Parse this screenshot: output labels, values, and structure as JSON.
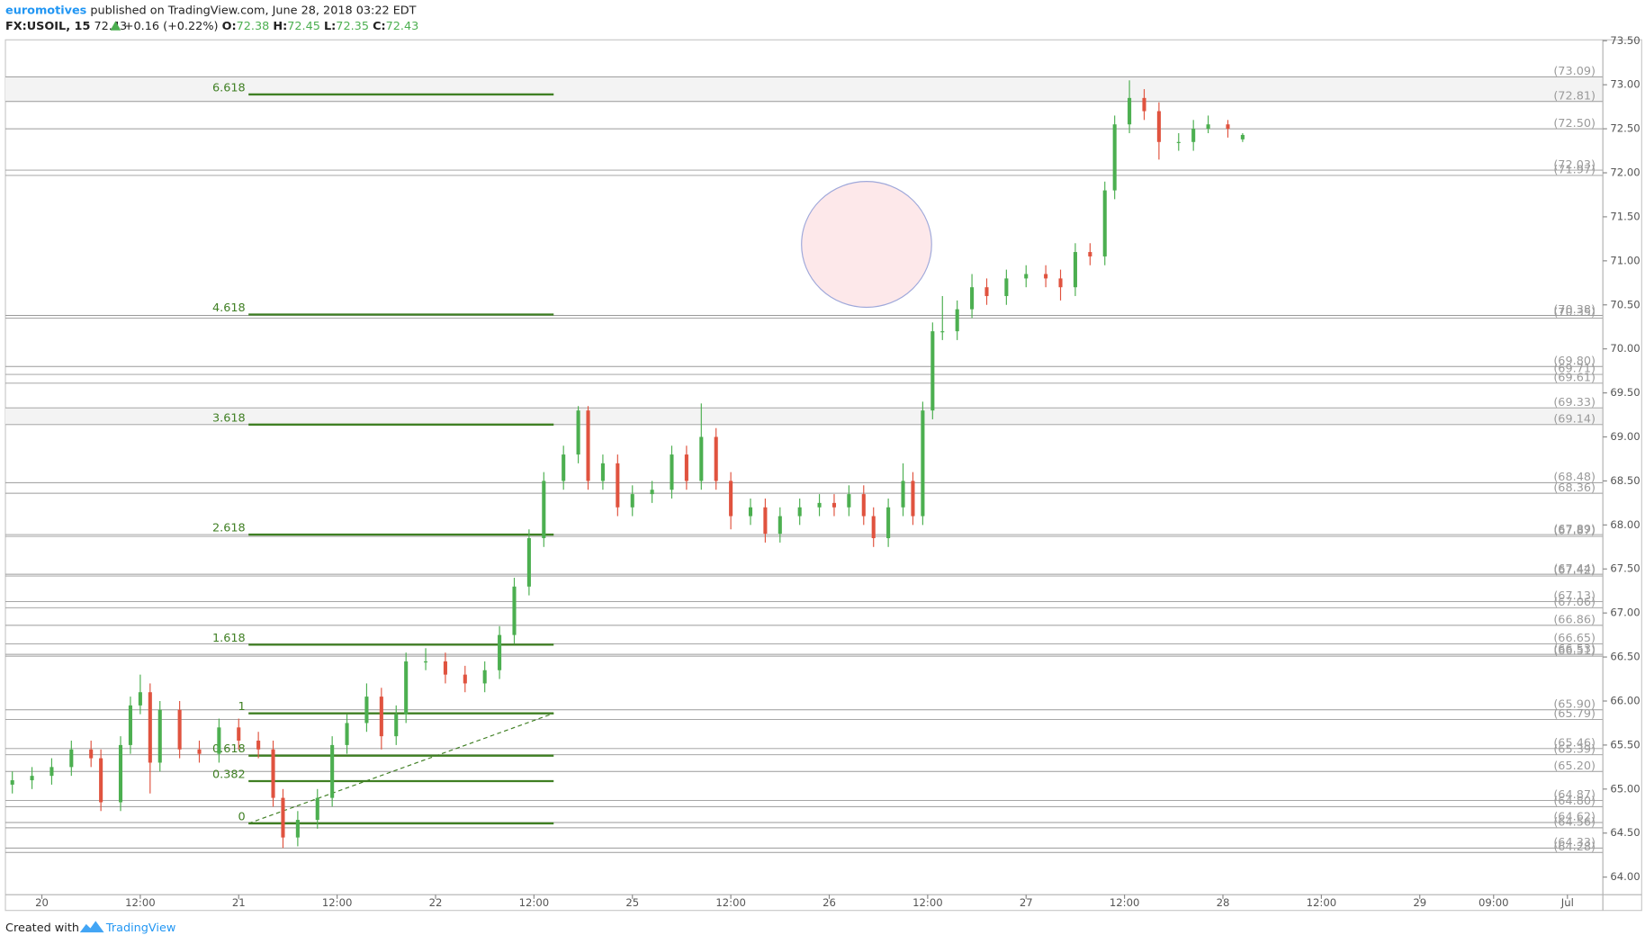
{
  "header": {
    "author": "euromotives",
    "published": "published on TradingView.com, June 28, 2018 03:22 EDT",
    "symbol": "FX:USOIL, 15",
    "last": 72.43,
    "change": "+0.16 (+0.22%)",
    "open_label": "O:",
    "open": 72.38,
    "high_label": "H:",
    "high": 72.45,
    "low_label": "L:",
    "low": 72.35,
    "close_label": "C:",
    "close": 72.43
  },
  "footer": {
    "created": "Created with",
    "brand": "TradingView"
  },
  "chart_data": {
    "type": "candlestick",
    "up_color": "#4caf50",
    "down_color": "#e0533f",
    "xlim": [
      -0.37,
      15.86
    ],
    "xticks": [
      {
        "value": 0,
        "label": "20"
      },
      {
        "value": 1,
        "label": "12:00"
      },
      {
        "value": 2,
        "label": "21"
      },
      {
        "value": 3,
        "label": "12:00"
      },
      {
        "value": 4,
        "label": "22"
      },
      {
        "value": 5,
        "label": "12:00"
      },
      {
        "value": 6,
        "label": "25"
      },
      {
        "value": 7,
        "label": "12:00"
      },
      {
        "value": 8,
        "label": "26"
      },
      {
        "value": 9,
        "label": "12:00"
      },
      {
        "value": 10,
        "label": "27"
      },
      {
        "value": 11,
        "label": "12:00"
      },
      {
        "value": 12,
        "label": "28"
      },
      {
        "value": 13,
        "label": "12:00"
      },
      {
        "value": 14,
        "label": "29"
      },
      {
        "value": 14.75,
        "label": "09:00"
      },
      {
        "value": 15.5,
        "label": "Jul"
      }
    ],
    "ylim": [
      63.8,
      73.51
    ],
    "yticks": [
      {
        "value": 64,
        "label": "64.00"
      },
      {
        "value": 64.5,
        "label": "64.50"
      },
      {
        "value": 65,
        "label": "65.00"
      },
      {
        "value": 65.5,
        "label": "65.50"
      },
      {
        "value": 66,
        "label": "66.00"
      },
      {
        "value": 66.5,
        "label": "66.50"
      },
      {
        "value": 67,
        "label": "67.00"
      },
      {
        "value": 67.5,
        "label": "67.50"
      },
      {
        "value": 68,
        "label": "68.00"
      },
      {
        "value": 68.5,
        "label": "68.50"
      },
      {
        "value": 69,
        "label": "69.00"
      },
      {
        "value": 69.5,
        "label": "69.50"
      },
      {
        "value": 70,
        "label": "70.00"
      },
      {
        "value": 70.5,
        "label": "70.50"
      },
      {
        "value": 71,
        "label": "71.00"
      },
      {
        "value": 71.5,
        "label": "71.50"
      },
      {
        "value": 72,
        "label": "72.00"
      },
      {
        "value": 72.5,
        "label": "72.50"
      },
      {
        "value": 73,
        "label": "73.00"
      },
      {
        "value": 73.5,
        "label": "73.50"
      }
    ],
    "candles": {
      "x": [
        -0.3,
        -0.1,
        0.1,
        0.3,
        0.5,
        0.6,
        0.8,
        0.9,
        1.0,
        1.1,
        1.2,
        1.4,
        1.6,
        1.8,
        2.0,
        2.2,
        2.35,
        2.45,
        2.6,
        2.8,
        2.95,
        3.1,
        3.3,
        3.45,
        3.6,
        3.7,
        3.9,
        4.1,
        4.3,
        4.5,
        4.65,
        4.8,
        4.95,
        5.1,
        5.3,
        5.45,
        5.55,
        5.7,
        5.85,
        6.0,
        6.2,
        6.4,
        6.55,
        6.7,
        6.85,
        7.0,
        7.2,
        7.35,
        7.5,
        7.7,
        7.9,
        8.05,
        8.2,
        8.35,
        8.45,
        8.6,
        8.75,
        8.85,
        8.95,
        9.05,
        9.15,
        9.3,
        9.45,
        9.6,
        9.8,
        10.0,
        10.2,
        10.35,
        10.5,
        10.65,
        10.8,
        10.9,
        11.05,
        11.2,
        11.35,
        11.55,
        11.7,
        11.85,
        12.05,
        12.2
      ],
      "open": [
        65.05,
        65.1,
        65.15,
        65.25,
        65.45,
        65.35,
        64.85,
        65.5,
        65.95,
        66.1,
        65.3,
        65.9,
        65.45,
        65.4,
        65.7,
        65.55,
        65.45,
        64.9,
        64.45,
        64.65,
        64.9,
        65.5,
        65.75,
        66.05,
        65.6,
        65.85,
        66.45,
        66.45,
        66.3,
        66.2,
        66.35,
        66.75,
        67.3,
        67.85,
        68.5,
        68.8,
        69.3,
        68.5,
        68.7,
        68.2,
        68.35,
        68.4,
        68.8,
        68.5,
        69.0,
        68.5,
        68.1,
        68.2,
        67.9,
        68.1,
        68.2,
        68.25,
        68.2,
        68.35,
        68.1,
        67.85,
        68.2,
        68.5,
        68.1,
        69.3,
        70.2,
        70.2,
        70.45,
        70.7,
        70.6,
        70.8,
        70.85,
        70.8,
        70.7,
        71.1,
        71.05,
        71.8,
        72.55,
        72.85,
        72.7,
        72.35,
        72.35,
        72.5,
        72.55,
        72.38
      ],
      "high": [
        65.2,
        65.25,
        65.35,
        65.55,
        65.55,
        65.45,
        65.6,
        66.05,
        66.3,
        66.2,
        66.0,
        66.0,
        65.55,
        65.8,
        65.8,
        65.65,
        65.55,
        65.0,
        64.75,
        65.0,
        65.6,
        65.85,
        66.2,
        66.15,
        65.95,
        66.55,
        66.6,
        66.55,
        66.4,
        66.45,
        66.85,
        67.4,
        67.95,
        68.6,
        68.9,
        69.35,
        69.35,
        68.8,
        68.8,
        68.45,
        68.5,
        68.9,
        68.9,
        69.38,
        69.1,
        68.6,
        68.3,
        68.3,
        68.2,
        68.3,
        68.35,
        68.35,
        68.45,
        68.45,
        68.2,
        68.3,
        68.7,
        68.6,
        69.4,
        70.3,
        70.6,
        70.55,
        70.85,
        70.8,
        70.9,
        70.95,
        70.95,
        70.9,
        71.2,
        71.2,
        71.9,
        72.65,
        73.05,
        72.95,
        72.8,
        72.45,
        72.6,
        72.65,
        72.6,
        72.45
      ],
      "low": [
        64.95,
        65.0,
        65.05,
        65.15,
        65.25,
        64.75,
        64.75,
        65.4,
        65.85,
        64.95,
        65.2,
        65.35,
        65.3,
        65.3,
        65.45,
        65.35,
        64.8,
        64.33,
        64.35,
        64.55,
        64.8,
        65.4,
        65.65,
        65.45,
        65.5,
        65.75,
        66.35,
        66.2,
        66.1,
        66.1,
        66.25,
        66.65,
        67.2,
        67.75,
        68.4,
        68.7,
        68.4,
        68.4,
        68.1,
        68.1,
        68.25,
        68.3,
        68.4,
        68.4,
        68.4,
        67.95,
        68.0,
        67.8,
        67.8,
        68.0,
        68.1,
        68.1,
        68.1,
        68.0,
        67.75,
        67.75,
        68.1,
        68.0,
        68.0,
        69.2,
        70.1,
        70.1,
        70.35,
        70.5,
        70.5,
        70.7,
        70.7,
        70.55,
        70.6,
        70.95,
        70.95,
        71.7,
        72.45,
        72.6,
        72.15,
        72.25,
        72.25,
        72.45,
        72.4,
        72.35
      ],
      "close": [
        65.1,
        65.15,
        65.25,
        65.45,
        65.35,
        64.85,
        65.5,
        65.95,
        66.1,
        65.3,
        65.9,
        65.45,
        65.4,
        65.7,
        65.55,
        65.45,
        64.9,
        64.45,
        64.65,
        64.9,
        65.5,
        65.75,
        66.05,
        65.6,
        65.85,
        66.45,
        66.45,
        66.3,
        66.2,
        66.35,
        66.75,
        67.3,
        67.85,
        68.5,
        68.8,
        69.3,
        68.5,
        68.7,
        68.2,
        68.35,
        68.4,
        68.8,
        68.5,
        69.0,
        68.5,
        68.1,
        68.2,
        67.9,
        68.1,
        68.2,
        68.25,
        68.2,
        68.35,
        68.1,
        67.85,
        68.2,
        68.5,
        68.1,
        69.3,
        70.2,
        70.2,
        70.45,
        70.7,
        70.6,
        70.8,
        70.85,
        70.8,
        70.7,
        71.1,
        71.05,
        71.8,
        72.55,
        72.85,
        72.7,
        72.35,
        72.35,
        72.5,
        72.55,
        72.5,
        72.43
      ]
    },
    "levels": [
      {
        "value": 73.09,
        "label": "(73.09)"
      },
      {
        "value": 72.81,
        "label": "(72.81)"
      },
      {
        "value": 72.5,
        "label": "(72.50)"
      },
      {
        "value": 72.03,
        "label": "(72.03)"
      },
      {
        "value": 71.97,
        "label": "(71.97)"
      },
      {
        "value": 70.38,
        "label": "(70.38)"
      },
      {
        "value": 70.35,
        "label": "(70.35)"
      },
      {
        "value": 69.8,
        "label": "(69.80)"
      },
      {
        "value": 69.71,
        "label": "(69.71)"
      },
      {
        "value": 69.61,
        "label": "(69.61)"
      },
      {
        "value": 69.33,
        "label": "(69.33)"
      },
      {
        "value": 69.14,
        "label": "(69.14)"
      },
      {
        "value": 68.48,
        "label": "(68.48)"
      },
      {
        "value": 68.36,
        "label": "(68.36)"
      },
      {
        "value": 67.89,
        "label": "(67.89)"
      },
      {
        "value": 67.87,
        "label": "(67.87)"
      },
      {
        "value": 67.44,
        "label": "(67.44)"
      },
      {
        "value": 67.42,
        "label": "(67.42)"
      },
      {
        "value": 67.13,
        "label": "(67.13)"
      },
      {
        "value": 67.06,
        "label": "(67.06)"
      },
      {
        "value": 66.86,
        "label": "(66.86)"
      },
      {
        "value": 66.65,
        "label": "(66.65)"
      },
      {
        "value": 66.53,
        "label": "(66.53)"
      },
      {
        "value": 66.51,
        "label": "(66.51)"
      },
      {
        "value": 65.9,
        "label": "(65.90)"
      },
      {
        "value": 65.79,
        "label": "(65.79)"
      },
      {
        "value": 65.46,
        "label": "(65.46)"
      },
      {
        "value": 65.39,
        "label": "(65.39)"
      },
      {
        "value": 65.2,
        "label": "(65.20)"
      },
      {
        "value": 64.87,
        "label": "(64.87)"
      },
      {
        "value": 64.8,
        "label": "(64.80)"
      },
      {
        "value": 64.62,
        "label": "(64.62)"
      },
      {
        "value": 64.56,
        "label": "(64.56)"
      },
      {
        "value": 64.33,
        "label": "(64.33)"
      },
      {
        "value": 64.28,
        "label": "(64.28)"
      }
    ],
    "fib": {
      "color": "#3f7f23",
      "x": [
        2.1,
        5.2
      ],
      "levels": [
        {
          "label": "6.618",
          "price": 72.89
        },
        {
          "label": "4.618",
          "price": 70.39
        },
        {
          "label": "3.618",
          "price": 69.14
        },
        {
          "label": "2.618",
          "price": 67.89
        },
        {
          "label": "1.618",
          "price": 66.64
        },
        {
          "label": "1",
          "price": 65.86
        },
        {
          "label": "0.618",
          "price": 65.38
        },
        {
          "label": "0.382",
          "price": 65.09
        },
        {
          "label": "0",
          "price": 64.61
        }
      ]
    }
  }
}
